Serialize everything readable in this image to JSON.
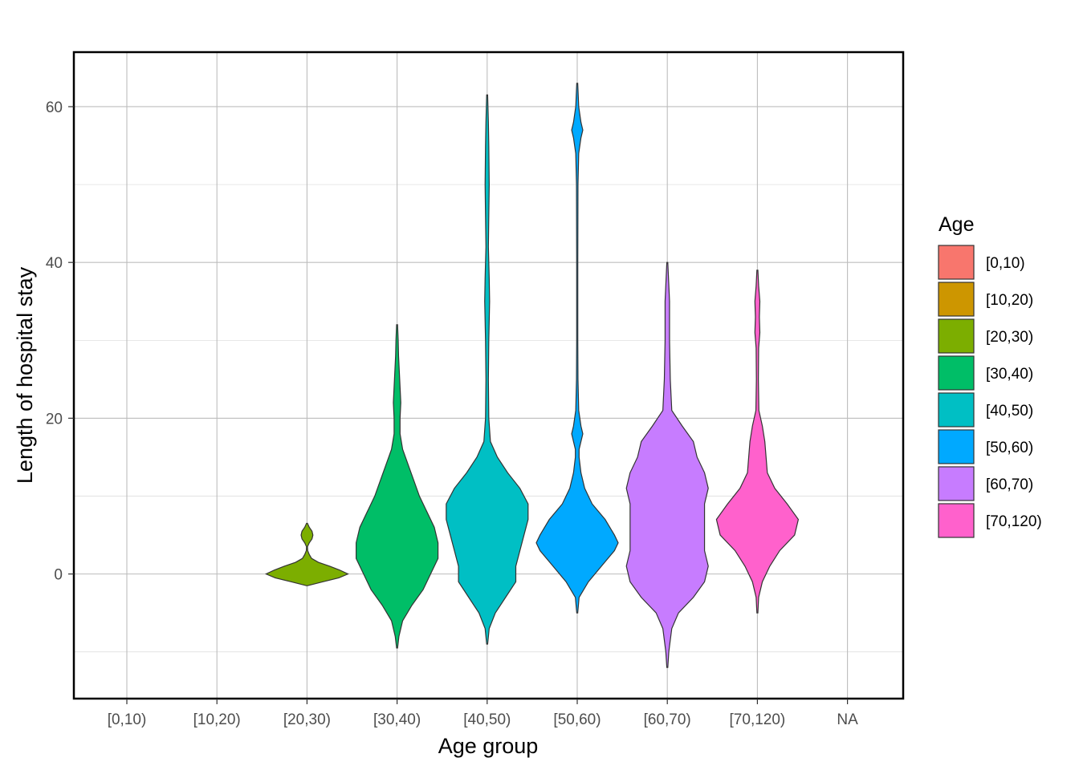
{
  "chart_data": {
    "type": "violin",
    "xlabel": "Age group",
    "ylabel": "Length of hospital stay",
    "categories": [
      "[0,10)",
      "[10,20)",
      "[20,30)",
      "[30,40)",
      "[40,50)",
      "[50,60)",
      "[60,70)",
      "[70,120)",
      "NA"
    ],
    "ylim": [
      -16,
      67
    ],
    "yticks": [
      0,
      20,
      40,
      60
    ],
    "grid": true,
    "legend": {
      "title": "Age",
      "position": "right",
      "items": [
        {
          "label": "[0,10)",
          "color": "#F8766D"
        },
        {
          "label": "[10,20)",
          "color": "#CD9600"
        },
        {
          "label": "[20,30)",
          "color": "#7CAE00"
        },
        {
          "label": "[30,40)",
          "color": "#00BE67"
        },
        {
          "label": "[40,50)",
          "color": "#00BFC4"
        },
        {
          "label": "[50,60)",
          "color": "#00A9FF"
        },
        {
          "label": "[60,70)",
          "color": "#C77CFF"
        },
        {
          "label": "[70,120)",
          "color": "#FF61CC"
        }
      ]
    },
    "violins": [
      {
        "category": "[20,30)",
        "color": "#7CAE00",
        "profile": [
          [
            -1.5,
            0
          ],
          [
            -1.0,
            0.35
          ],
          [
            -0.5,
            0.7
          ],
          [
            0,
            0.9
          ],
          [
            0.5,
            0.72
          ],
          [
            1.0,
            0.5
          ],
          [
            1.5,
            0.25
          ],
          [
            2.0,
            0.1
          ],
          [
            2.5,
            0.05
          ],
          [
            3.0,
            0.015
          ],
          [
            3.5,
            0.008
          ],
          [
            4.0,
            0.05
          ],
          [
            4.5,
            0.11
          ],
          [
            5.0,
            0.13
          ],
          [
            5.5,
            0.11
          ],
          [
            6.0,
            0.05
          ],
          [
            6.5,
            0
          ]
        ]
      },
      {
        "category": "[30,40)",
        "color": "#00BE67",
        "profile": [
          [
            -9.5,
            0
          ],
          [
            -8,
            0.005
          ],
          [
            -6,
            0.015
          ],
          [
            -4,
            0.04
          ],
          [
            -2,
            0.07
          ],
          [
            0,
            0.09
          ],
          [
            2,
            0.11
          ],
          [
            4,
            0.11
          ],
          [
            6,
            0.1
          ],
          [
            8,
            0.08
          ],
          [
            10,
            0.06
          ],
          [
            12,
            0.045
          ],
          [
            14,
            0.03
          ],
          [
            16,
            0.015
          ],
          [
            18,
            0.008
          ],
          [
            20,
            0.008
          ],
          [
            22,
            0.01
          ],
          [
            24,
            0.008
          ],
          [
            26,
            0.006
          ],
          [
            28,
            0.004
          ],
          [
            30,
            0.003
          ],
          [
            32,
            0
          ]
        ]
      },
      {
        "category": "[40,50)",
        "color": "#00BFC4",
        "profile": [
          [
            -9,
            0
          ],
          [
            -7,
            0.005
          ],
          [
            -5,
            0.02
          ],
          [
            -3,
            0.045
          ],
          [
            -1,
            0.07
          ],
          [
            1,
            0.07
          ],
          [
            3,
            0.08
          ],
          [
            5,
            0.09
          ],
          [
            7,
            0.1
          ],
          [
            9,
            0.1
          ],
          [
            11,
            0.08
          ],
          [
            13,
            0.05
          ],
          [
            15,
            0.025
          ],
          [
            17,
            0.008
          ],
          [
            20,
            0.004
          ],
          [
            25,
            0.003
          ],
          [
            30,
            0.004
          ],
          [
            35,
            0.006
          ],
          [
            38,
            0.005
          ],
          [
            42,
            0.003
          ],
          [
            46,
            0.004
          ],
          [
            50,
            0.005
          ],
          [
            55,
            0.004
          ],
          [
            58,
            0.003
          ],
          [
            61.5,
            0
          ]
        ]
      },
      {
        "category": "[50,60)",
        "color": "#00A9FF",
        "profile": [
          [
            -5,
            0
          ],
          [
            -3,
            0.01
          ],
          [
            -1,
            0.06
          ],
          [
            1,
            0.13
          ],
          [
            3,
            0.2
          ],
          [
            4,
            0.22
          ],
          [
            5,
            0.2
          ],
          [
            7,
            0.15
          ],
          [
            9,
            0.08
          ],
          [
            11,
            0.04
          ],
          [
            13,
            0.02
          ],
          [
            15,
            0.01
          ],
          [
            16,
            0.01
          ],
          [
            17,
            0.02
          ],
          [
            18,
            0.03
          ],
          [
            19,
            0.02
          ],
          [
            21,
            0.008
          ],
          [
            25,
            0.004
          ],
          [
            30,
            0.003
          ],
          [
            40,
            0.003
          ],
          [
            50,
            0.004
          ],
          [
            54,
            0.008
          ],
          [
            56,
            0.02
          ],
          [
            57,
            0.03
          ],
          [
            58,
            0.02
          ],
          [
            60,
            0.008
          ],
          [
            63,
            0
          ]
        ]
      },
      {
        "category": "[60,70)",
        "color": "#C77CFF",
        "profile": [
          [
            -12,
            0
          ],
          [
            -10,
            0.002
          ],
          [
            -7,
            0.006
          ],
          [
            -5,
            0.015
          ],
          [
            -3,
            0.035
          ],
          [
            -1,
            0.05
          ],
          [
            1,
            0.055
          ],
          [
            3,
            0.05
          ],
          [
            5,
            0.05
          ],
          [
            7,
            0.05
          ],
          [
            9,
            0.05
          ],
          [
            11,
            0.055
          ],
          [
            13,
            0.05
          ],
          [
            15,
            0.04
          ],
          [
            17,
            0.035
          ],
          [
            19,
            0.02
          ],
          [
            21,
            0.006
          ],
          [
            25,
            0.004
          ],
          [
            30,
            0.003
          ],
          [
            35,
            0.003
          ],
          [
            40,
            0
          ]
        ]
      },
      {
        "category": "[70,120)",
        "color": "#FF61CC",
        "profile": [
          [
            -5,
            0
          ],
          [
            -3,
            0.005
          ],
          [
            -1,
            0.02
          ],
          [
            1,
            0.05
          ],
          [
            3,
            0.09
          ],
          [
            5,
            0.15
          ],
          [
            7,
            0.165
          ],
          [
            9,
            0.12
          ],
          [
            11,
            0.07
          ],
          [
            13,
            0.04
          ],
          [
            15,
            0.035
          ],
          [
            17,
            0.03
          ],
          [
            19,
            0.02
          ],
          [
            21,
            0.006
          ],
          [
            25,
            0.004
          ],
          [
            29,
            0.005
          ],
          [
            31,
            0.01
          ],
          [
            33,
            0.008
          ],
          [
            35,
            0.01
          ],
          [
            37,
            0.005
          ],
          [
            39,
            0
          ]
        ]
      }
    ]
  }
}
